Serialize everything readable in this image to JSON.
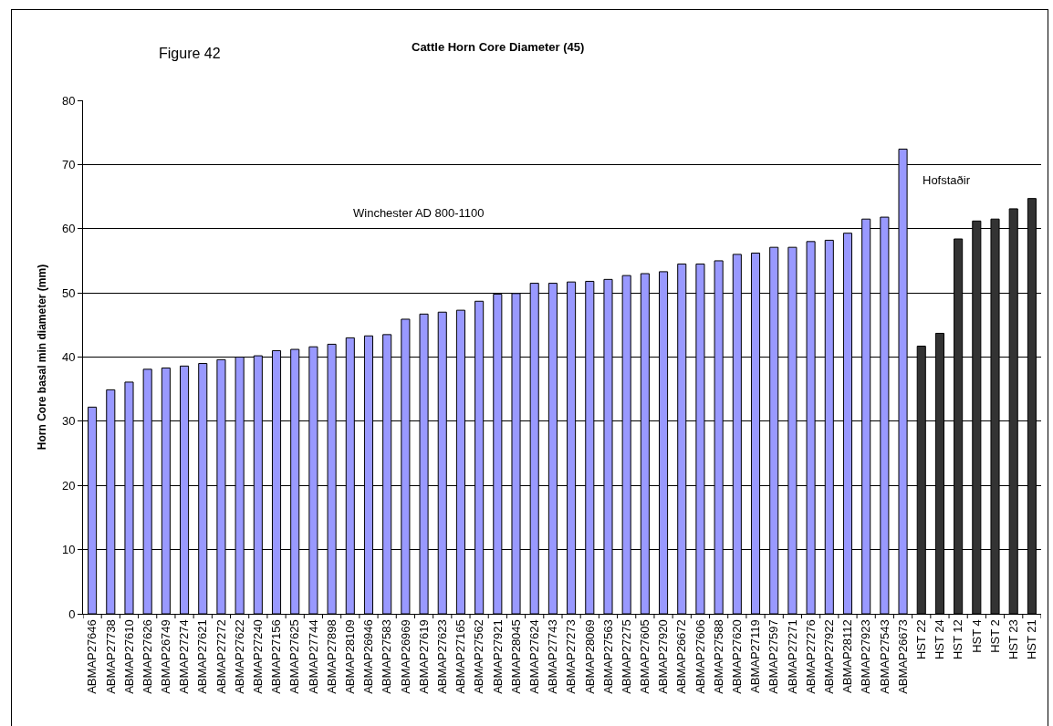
{
  "chart_data": {
    "type": "bar",
    "title": "Cattle Horn Core Diameter (45)",
    "ylabel": "Horn Core basal min diameter (mm)",
    "annotations": [
      "Figure 42",
      "Winchester AD 800-1100",
      "Hofstaðir"
    ],
    "categories": [
      "ABMAP27646",
      "ABMAP27738",
      "ABMAP27610",
      "ABMAP27626",
      "ABMAP26749",
      "ABMAP27274",
      "ABMAP27621",
      "ABMAP27272",
      "ABMAP27622",
      "ABMAP27240",
      "ABMAP27156",
      "ABMAP27625",
      "ABMAP27744",
      "ABMAP27898",
      "ABMAP28109",
      "ABMAP26946",
      "ABMAP27583",
      "ABMAP26969",
      "ABMAP27619",
      "ABMAP27623",
      "ABMAP27165",
      "ABMAP27562",
      "ABMAP27921",
      "ABMAP28045",
      "ABMAP27624",
      "ABMAP27743",
      "ABMAP27273",
      "ABMAP28069",
      "ABMAP27563",
      "ABMAP27275",
      "ABMAP27605",
      "ABMAP27920",
      "ABMAP26672",
      "ABMAP27606",
      "ABMAP27588",
      "ABMAP27620",
      "ABMAP27119",
      "ABMAP27597",
      "ABMAP27271",
      "ABMAP27276",
      "ABMAP27922",
      "ABMAP28112",
      "ABMAP27923",
      "ABMAP27543",
      "ABMAP26673",
      "HST 22",
      "HST 24",
      "HST 12",
      "HST 4",
      "HST 2",
      "HST 23",
      "HST 21"
    ],
    "series": [
      {
        "color": "#9999ff",
        "values": [
          32.2,
          34.9,
          36.1,
          38.1,
          38.3,
          38.6,
          39.0,
          39.6,
          40.0,
          40.2,
          41.0,
          41.2,
          41.6,
          42.0,
          43.0,
          43.3,
          43.5,
          45.9,
          46.7,
          47.0,
          47.3,
          48.7,
          49.8,
          49.9,
          51.5,
          51.5,
          51.7,
          51.8,
          52.1,
          52.7,
          53.0,
          53.3,
          54.5,
          54.5,
          55.0,
          56.0,
          56.2,
          57.1,
          57.1,
          58.0,
          58.2,
          59.3,
          61.5,
          61.8,
          72.4,
          null,
          null,
          null,
          null,
          null,
          null,
          null
        ]
      },
      {
        "color": "#333333",
        "values": [
          null,
          null,
          null,
          null,
          null,
          null,
          null,
          null,
          null,
          null,
          null,
          null,
          null,
          null,
          null,
          null,
          null,
          null,
          null,
          null,
          null,
          null,
          null,
          null,
          null,
          null,
          null,
          null,
          null,
          null,
          null,
          null,
          null,
          null,
          null,
          null,
          null,
          null,
          null,
          null,
          null,
          null,
          null,
          null,
          null,
          41.7,
          43.7,
          58.4,
          61.2,
          61.5,
          63.1,
          64.7
        ]
      }
    ],
    "ylim": [
      0,
      80
    ],
    "yticks": [
      0,
      10,
      20,
      30,
      40,
      50,
      60,
      70,
      80
    ],
    "grid": "y"
  }
}
